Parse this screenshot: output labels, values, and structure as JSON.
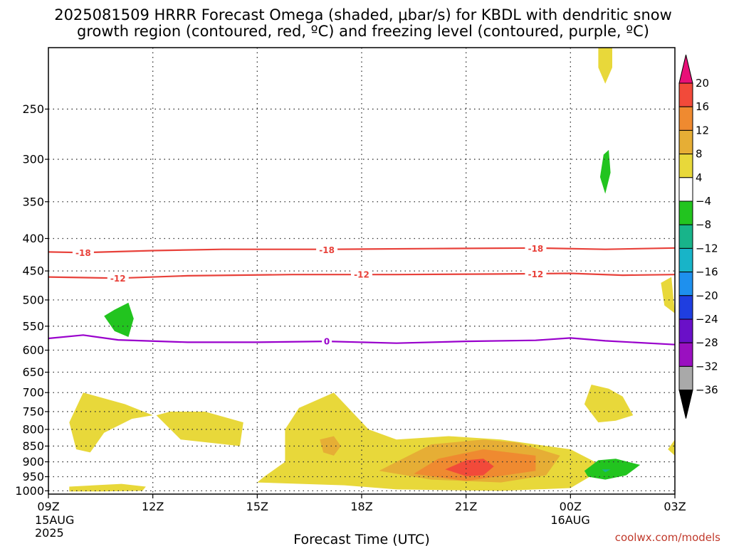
{
  "chart_data": {
    "type": "contour",
    "title_lines": [
      "2025081509 HRRR Forecast Omega (shaded, μbar/s) for KBDL with dendritic snow",
      "growth region (contoured, red, ºC) and freezing level (contoured, purple, ºC)"
    ],
    "xlabel": "Forecast Time (UTC)",
    "x_ticks": [
      {
        "h": 0,
        "label": "09Z",
        "sub": [
          "15AUG",
          "2025"
        ]
      },
      {
        "h": 3,
        "label": "12Z",
        "sub": []
      },
      {
        "h": 6,
        "label": "15Z",
        "sub": []
      },
      {
        "h": 9,
        "label": "18Z",
        "sub": []
      },
      {
        "h": 12,
        "label": "21Z",
        "sub": []
      },
      {
        "h": 15,
        "label": "00Z",
        "sub": [
          "16AUG"
        ]
      },
      {
        "h": 18,
        "label": "03Z",
        "sub": []
      }
    ],
    "xlim_hours": [
      0,
      18
    ],
    "ylabel": "",
    "y_ticks": [
      250,
      300,
      350,
      400,
      450,
      500,
      550,
      600,
      650,
      700,
      750,
      800,
      850,
      900,
      950,
      1000
    ],
    "ylim_hpa": [
      200,
      1012
    ],
    "y_scale": "log",
    "grid": true,
    "temperature_contours": [
      {
        "level": -18,
        "color": "#e8413a",
        "label": "-18",
        "points": [
          [
            0,
            420
          ],
          [
            1,
            421
          ],
          [
            3,
            418
          ],
          [
            5,
            416
          ],
          [
            8,
            416
          ],
          [
            11,
            415
          ],
          [
            14,
            414
          ],
          [
            16,
            416
          ],
          [
            18,
            414
          ]
        ],
        "label_at": [
          [
            1,
            421
          ],
          [
            8,
            417
          ],
          [
            14,
            415
          ]
        ]
      },
      {
        "level": -12,
        "color": "#e8413a",
        "label": "-12",
        "points": [
          [
            0,
            460
          ],
          [
            2,
            462
          ],
          [
            4,
            458
          ],
          [
            7,
            456
          ],
          [
            10,
            456
          ],
          [
            13,
            455
          ],
          [
            15,
            454
          ],
          [
            16.5,
            457
          ],
          [
            18,
            456
          ]
        ],
        "label_at": [
          [
            2,
            462
          ],
          [
            9,
            456
          ],
          [
            14,
            455
          ]
        ]
      },
      {
        "level": 0,
        "color": "#9900cc",
        "label": "0",
        "points": [
          [
            0,
            575
          ],
          [
            1,
            568
          ],
          [
            2,
            578
          ],
          [
            4,
            583
          ],
          [
            6,
            583
          ],
          [
            8,
            581
          ],
          [
            10,
            585
          ],
          [
            12,
            581
          ],
          [
            14,
            579
          ],
          [
            15,
            574
          ],
          [
            16,
            580
          ],
          [
            18,
            588
          ]
        ],
        "label_at": [
          [
            8,
            581
          ]
        ]
      }
    ],
    "omega_regions": [
      {
        "level": "4 to 8",
        "color": "#e8d83a",
        "points": [
          [
            1,
            700
          ],
          [
            0.6,
            780
          ],
          [
            0.8,
            860
          ],
          [
            1.2,
            870
          ],
          [
            1.6,
            810
          ],
          [
            2.4,
            770
          ],
          [
            3,
            760
          ],
          [
            2.2,
            730
          ]
        ]
      },
      {
        "level": "4 to 8",
        "color": "#e8d83a",
        "points": [
          [
            3.1,
            760
          ],
          [
            3.8,
            830
          ],
          [
            5.5,
            850
          ],
          [
            5.6,
            780
          ],
          [
            4.5,
            750
          ],
          [
            3.5,
            750
          ]
        ]
      },
      {
        "level": "4 to 8",
        "color": "#e8d83a",
        "points": [
          [
            0.6,
            985
          ],
          [
            2.1,
            975
          ],
          [
            2.8,
            985
          ],
          [
            2.7,
            1000
          ],
          [
            1.5,
            1002
          ],
          [
            0.6,
            1002
          ]
        ]
      },
      {
        "level": "4 to 8",
        "color": "#e8d83a",
        "points": [
          [
            6.2,
            950
          ],
          [
            6.0,
            970
          ],
          [
            8.5,
            980
          ],
          [
            10,
            995
          ],
          [
            13,
            1000
          ],
          [
            15,
            990
          ],
          [
            15.7,
            940
          ],
          [
            15.7,
            900
          ],
          [
            15,
            860
          ],
          [
            13,
            830
          ],
          [
            11.5,
            820
          ],
          [
            10,
            830
          ],
          [
            9.2,
            800
          ],
          [
            8.2,
            700
          ],
          [
            7.2,
            740
          ],
          [
            6.8,
            800
          ],
          [
            6.8,
            900
          ]
        ]
      },
      {
        "level": "4 to 8",
        "color": "#e8d83a",
        "points": [
          [
            15.6,
            680
          ],
          [
            15.4,
            730
          ],
          [
            15.8,
            780
          ],
          [
            16.3,
            775
          ],
          [
            16.8,
            760
          ],
          [
            16.5,
            710
          ],
          [
            16.1,
            690
          ]
        ]
      },
      {
        "level": "4 to 8",
        "color": "#e8d83a",
        "points": [
          [
            17.9,
            460
          ],
          [
            17.6,
            470
          ],
          [
            17.7,
            510
          ],
          [
            18,
            525
          ]
        ]
      },
      {
        "level": "4 to 8",
        "color": "#e8d83a",
        "points": [
          [
            18,
            830
          ],
          [
            17.8,
            860
          ],
          [
            18,
            880
          ]
        ]
      },
      {
        "level": "4 to 8",
        "color": "#e8d83a",
        "points": [
          [
            15.8,
            200
          ],
          [
            15.8,
            215
          ],
          [
            16.0,
            228
          ],
          [
            16.2,
            215
          ],
          [
            16.2,
            200
          ]
        ]
      },
      {
        "level": "8 to 12",
        "color": "#e6ae35",
        "points": [
          [
            9.5,
            930
          ],
          [
            11,
            960
          ],
          [
            13,
            970
          ],
          [
            14.3,
            945
          ],
          [
            14.7,
            880
          ],
          [
            13.5,
            840
          ],
          [
            12.5,
            830
          ],
          [
            11,
            845
          ],
          [
            10,
            900
          ]
        ]
      },
      {
        "level": "8 to 12",
        "color": "#e6ae35",
        "points": [
          [
            7.8,
            830
          ],
          [
            7.9,
            870
          ],
          [
            8.2,
            880
          ],
          [
            8.4,
            850
          ],
          [
            8.2,
            820
          ]
        ]
      },
      {
        "level": "12 to 16",
        "color": "#ef8a30",
        "points": [
          [
            10.5,
            940
          ],
          [
            12,
            965
          ],
          [
            14.0,
            930
          ],
          [
            14.0,
            880
          ],
          [
            12.5,
            860
          ],
          [
            11.2,
            890
          ]
        ]
      },
      {
        "level": "16 to 20",
        "color": "#f24a3a",
        "points": [
          [
            11.4,
            925
          ],
          [
            12.0,
            948
          ],
          [
            12.5,
            945
          ],
          [
            12.8,
            915
          ],
          [
            12.5,
            890
          ],
          [
            12.0,
            895
          ]
        ]
      },
      {
        "level": "-8 to -4",
        "color": "#22c41f",
        "points": [
          [
            1.6,
            530
          ],
          [
            1.9,
            560
          ],
          [
            2.3,
            572
          ],
          [
            2.45,
            535
          ],
          [
            2.3,
            505
          ],
          [
            1.9,
            518
          ]
        ]
      },
      {
        "level": "-8 to -4",
        "color": "#22c41f",
        "points": [
          [
            15.95,
            295
          ],
          [
            15.85,
            320
          ],
          [
            16.0,
            340
          ],
          [
            16.15,
            315
          ],
          [
            16.1,
            290
          ]
        ]
      },
      {
        "level": "-8 to -4",
        "color": "#22c41f",
        "points": [
          [
            15.4,
            930
          ],
          [
            15.5,
            950
          ],
          [
            16.0,
            960
          ],
          [
            16.6,
            945
          ],
          [
            17.0,
            910
          ],
          [
            16.3,
            890
          ],
          [
            15.8,
            895
          ]
        ]
      },
      {
        "level": "-12 to -8",
        "color": "#18b48a",
        "points": [
          [
            15.9,
            925
          ],
          [
            16.0,
            935
          ],
          [
            16.15,
            925
          ]
        ]
      }
    ],
    "ground": {
      "color": "#a35525",
      "from_hpa": 1012,
      "to_hpa": 1030
    },
    "colorbar": {
      "boundaries": [
        20,
        16,
        12,
        8,
        4,
        -4,
        -8,
        -12,
        -16,
        -20,
        -24,
        -28,
        -32,
        -36
      ],
      "tick_labels": [
        "20",
        "16",
        "12",
        "8",
        "4",
        "−4",
        "−8",
        "−12",
        "−16",
        "−20",
        "−24",
        "−28",
        "−32",
        "−36"
      ],
      "top_color": "#e81078",
      "colors": [
        "#f24a3a",
        "#ef8a30",
        "#e6ae35",
        "#e8d83a",
        "#ffffff",
        "#22c41f",
        "#18b48a",
        "#18b4c8",
        "#1e90ee",
        "#1f3ee0",
        "#6a10c8",
        "#9a10c0",
        "#a9a9a9"
      ],
      "bottom_color": "#000000"
    },
    "watermark": "coolwx.com/models"
  }
}
